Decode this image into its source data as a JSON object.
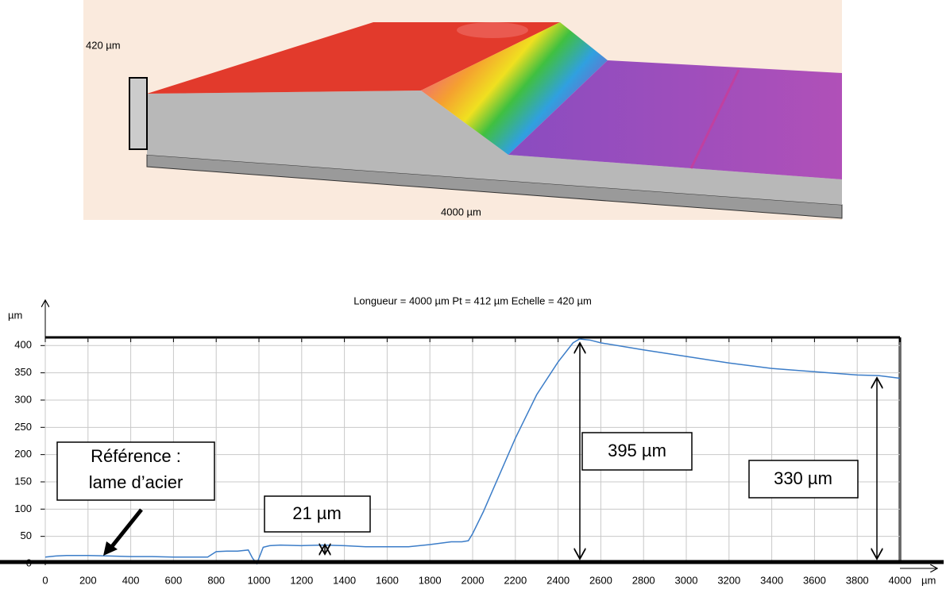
{
  "render": {
    "height_label": "420 µm",
    "length_label": "4000 µm"
  },
  "chart_data": {
    "type": "line",
    "title": "Longueur = 4000 µm  Pt = 412 µm  Echelle = 420 µm",
    "y_label": "µm",
    "x_label": "µm",
    "x": [
      0,
      50,
      100,
      200,
      300,
      400,
      500,
      600,
      700,
      760,
      800,
      850,
      900,
      950,
      970,
      990,
      1020,
      1050,
      1100,
      1200,
      1300,
      1400,
      1500,
      1600,
      1700,
      1800,
      1900,
      1950,
      1980,
      2000,
      2050,
      2100,
      2200,
      2300,
      2400,
      2470,
      2500,
      2550,
      2600,
      2800,
      3000,
      3200,
      3400,
      3600,
      3800,
      3900,
      4000
    ],
    "series": [
      {
        "color": "#3c7dc8",
        "values": [
          12,
          14,
          15,
          15,
          14,
          13,
          13,
          12,
          12,
          12,
          22,
          23,
          23,
          25,
          10,
          0,
          30,
          33,
          34,
          33,
          34,
          33,
          31,
          31,
          31,
          35,
          40,
          40,
          42,
          55,
          95,
          140,
          230,
          310,
          370,
          405,
          412,
          410,
          405,
          392,
          380,
          368,
          358,
          352,
          346,
          345,
          340
        ]
      }
    ],
    "xlim": [
      0,
      4000
    ],
    "ylim": [
      0,
      415
    ],
    "xticks": [
      0,
      200,
      400,
      600,
      800,
      1000,
      1200,
      1400,
      1600,
      1800,
      2000,
      2200,
      2400,
      2600,
      2800,
      3000,
      3200,
      3400,
      3600,
      3800,
      4000
    ],
    "yticks": [
      0,
      50,
      100,
      150,
      200,
      250,
      300,
      350,
      400
    ],
    "grid": true,
    "annotations": {
      "reference": [
        "Référence :",
        "lame d’acier"
      ],
      "step": "21 µm",
      "peak": "395 µm",
      "end": "330 µm"
    }
  }
}
